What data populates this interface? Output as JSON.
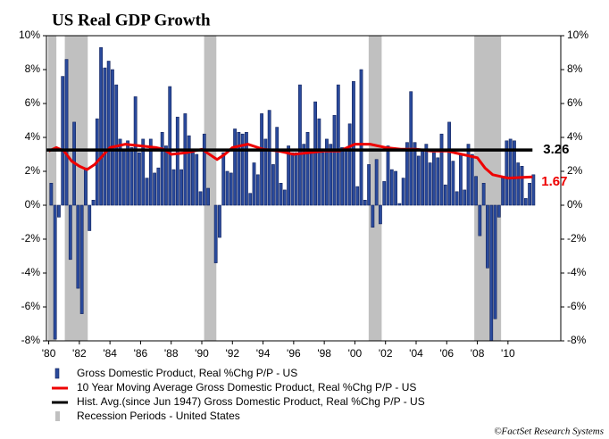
{
  "chart_data": {
    "type": "bar",
    "title": "US Real GDP Growth",
    "footnote": "©FactSet Research Systems",
    "xlim": [
      1979.85,
      2013.45
    ],
    "xticks": [
      {
        "value": 1980,
        "label": "'80"
      },
      {
        "value": 1982,
        "label": "'82"
      },
      {
        "value": 1984,
        "label": "'84"
      },
      {
        "value": 1986,
        "label": "'86"
      },
      {
        "value": 1988,
        "label": "'88"
      },
      {
        "value": 1990,
        "label": "'90"
      },
      {
        "value": 1992,
        "label": "'92"
      },
      {
        "value": 1994,
        "label": "'94"
      },
      {
        "value": 1996,
        "label": "'96"
      },
      {
        "value": 1998,
        "label": "'98"
      },
      {
        "value": 2000,
        "label": "'00"
      },
      {
        "value": 2002,
        "label": "'02"
      },
      {
        "value": 2004,
        "label": "'04"
      },
      {
        "value": 2006,
        "label": "'06"
      },
      {
        "value": 2008,
        "label": "'08"
      },
      {
        "value": 2010,
        "label": "'10"
      }
    ],
    "ylim": [
      -8,
      10
    ],
    "yticks": [
      {
        "value": -8,
        "label": "-8%"
      },
      {
        "value": -6,
        "label": "-6%"
      },
      {
        "value": -4,
        "label": "-4%"
      },
      {
        "value": -2,
        "label": "-2%"
      },
      {
        "value": 0,
        "label": "0%"
      },
      {
        "value": 2,
        "label": "2%"
      },
      {
        "value": 4,
        "label": "4%"
      },
      {
        "value": 6,
        "label": "6%"
      },
      {
        "value": 8,
        "label": "8%"
      },
      {
        "value": 10,
        "label": "10%"
      }
    ],
    "x": [
      1980,
      1980.25,
      1980.5,
      1980.75,
      1981,
      1981.25,
      1981.5,
      1981.75,
      1982,
      1982.25,
      1982.5,
      1982.75,
      1983,
      1983.25,
      1983.5,
      1983.75,
      1984,
      1984.25,
      1984.5,
      1984.75,
      1985,
      1985.25,
      1985.5,
      1985.75,
      1986,
      1986.25,
      1986.5,
      1986.75,
      1987,
      1987.25,
      1987.5,
      1987.75,
      1988,
      1988.25,
      1988.5,
      1988.75,
      1989,
      1989.25,
      1989.5,
      1989.75,
      1990,
      1990.25,
      1990.5,
      1990.75,
      1991,
      1991.25,
      1991.5,
      1991.75,
      1992,
      1992.25,
      1992.5,
      1992.75,
      1993,
      1993.25,
      1993.5,
      1993.75,
      1994,
      1994.25,
      1994.5,
      1994.75,
      1995,
      1995.25,
      1995.5,
      1995.75,
      1996,
      1996.25,
      1996.5,
      1996.75,
      1997,
      1997.25,
      1997.5,
      1997.75,
      1998,
      1998.25,
      1998.5,
      1998.75,
      1999,
      1999.25,
      1999.5,
      1999.75,
      2000,
      2000.25,
      2000.5,
      2000.75,
      2001,
      2001.25,
      2001.5,
      2001.75,
      2002,
      2002.25,
      2002.5,
      2002.75,
      2003,
      2003.25,
      2003.5,
      2003.75,
      2004,
      2004.25,
      2004.5,
      2004.75,
      2005,
      2005.25,
      2005.5,
      2005.75,
      2006,
      2006.25,
      2006.5,
      2006.75,
      2007,
      2007.25,
      2007.5,
      2007.75,
      2008,
      2008.25,
      2008.5,
      2008.75,
      2009,
      2009.25,
      2009.5,
      2009.75,
      2010,
      2010.25,
      2010.5,
      2010.75,
      2011,
      2011.25,
      2011.5
    ],
    "series": [
      {
        "name": "Gross Domestic Product, Real %Chg P/P - US",
        "color": "#2a4a9c",
        "values": [
          1.3,
          -7.9,
          -0.7,
          7.6,
          8.6,
          -3.2,
          4.9,
          -4.9,
          -6.4,
          2.2,
          -1.5,
          0.3,
          5.1,
          9.3,
          8.1,
          8.5,
          8.0,
          7.1,
          3.9,
          3.3,
          3.8,
          3.4,
          6.4,
          3.1,
          3.9,
          1.6,
          3.9,
          1.9,
          2.2,
          4.3,
          3.5,
          7.0,
          2.1,
          5.2,
          2.1,
          5.4,
          4.1,
          3.1,
          3.0,
          0.8,
          4.2,
          1.0,
          0.0,
          -3.4,
          -1.9,
          3.1,
          2.0,
          1.9,
          4.5,
          4.3,
          4.2,
          4.3,
          0.7,
          2.5,
          1.8,
          5.4,
          3.9,
          5.6,
          2.4,
          4.6,
          1.3,
          0.9,
          3.5,
          3.1,
          3.1,
          7.1,
          3.6,
          4.3,
          3.1,
          6.1,
          5.1,
          3.1,
          3.9,
          3.6,
          5.3,
          7.1,
          3.4,
          3.4,
          4.8,
          7.3,
          1.1,
          8.0,
          0.3,
          2.4,
          -1.3,
          2.7,
          -1.1,
          1.4,
          3.5,
          2.1,
          2.0,
          0.1,
          1.6,
          3.7,
          6.7,
          3.7,
          2.9,
          3.3,
          3.6,
          2.5,
          3.1,
          2.8,
          4.2,
          1.2,
          4.9,
          2.6,
          0.8,
          3.0,
          0.9,
          3.6,
          3.0,
          1.7,
          -1.8,
          1.3,
          -3.7,
          -8.9,
          -6.7,
          -0.7,
          1.7,
          3.8,
          3.9,
          3.8,
          2.5,
          2.3,
          0.4,
          1.3,
          1.8
        ]
      }
    ],
    "lines": [
      {
        "name": "10 Year Moving Average Gross Domestic Product, Real %Chg P/P - US",
        "color": "#ee0000",
        "x": [
          1980,
          1980.5,
          1981,
          1981.5,
          1982,
          1982.5,
          1983,
          1983.5,
          1984,
          1985,
          1986,
          1987,
          1987.5,
          1988,
          1989,
          1990,
          1990.5,
          1991,
          1991.5,
          1992,
          1993,
          1994,
          1995,
          1996,
          1997,
          1998,
          1999,
          2000,
          2001,
          2002,
          2003,
          2004,
          2005,
          2006,
          2007,
          2008,
          2008.5,
          2009,
          2010,
          2011.6
        ],
        "values": [
          3.2,
          3.4,
          3.2,
          2.6,
          2.3,
          2.1,
          2.4,
          2.9,
          3.4,
          3.6,
          3.5,
          3.4,
          3.3,
          3.0,
          3.1,
          3.3,
          3.0,
          2.7,
          3.0,
          3.4,
          3.6,
          3.3,
          3.2,
          3.0,
          3.1,
          3.2,
          3.2,
          3.6,
          3.6,
          3.4,
          3.3,
          3.3,
          3.2,
          3.2,
          3.0,
          2.8,
          2.2,
          1.8,
          1.6,
          1.67
        ]
      },
      {
        "name": "Hist. Avg.(since Jun 1947) Gross Domestic Product, Real %Chg P/P - US",
        "color": "#000000",
        "x": [
          1979.85,
          2011.6
        ],
        "values": [
          3.26,
          3.26
        ]
      }
    ],
    "recessions": {
      "name": "Recession Periods - United States",
      "color": "#c0c0c0",
      "spans": [
        [
          1979.95,
          1980.5
        ],
        [
          1981.05,
          1982.55
        ],
        [
          1990.15,
          1990.95
        ],
        [
          2000.9,
          2001.75
        ],
        [
          2007.8,
          2009.55
        ]
      ]
    }
  }
}
